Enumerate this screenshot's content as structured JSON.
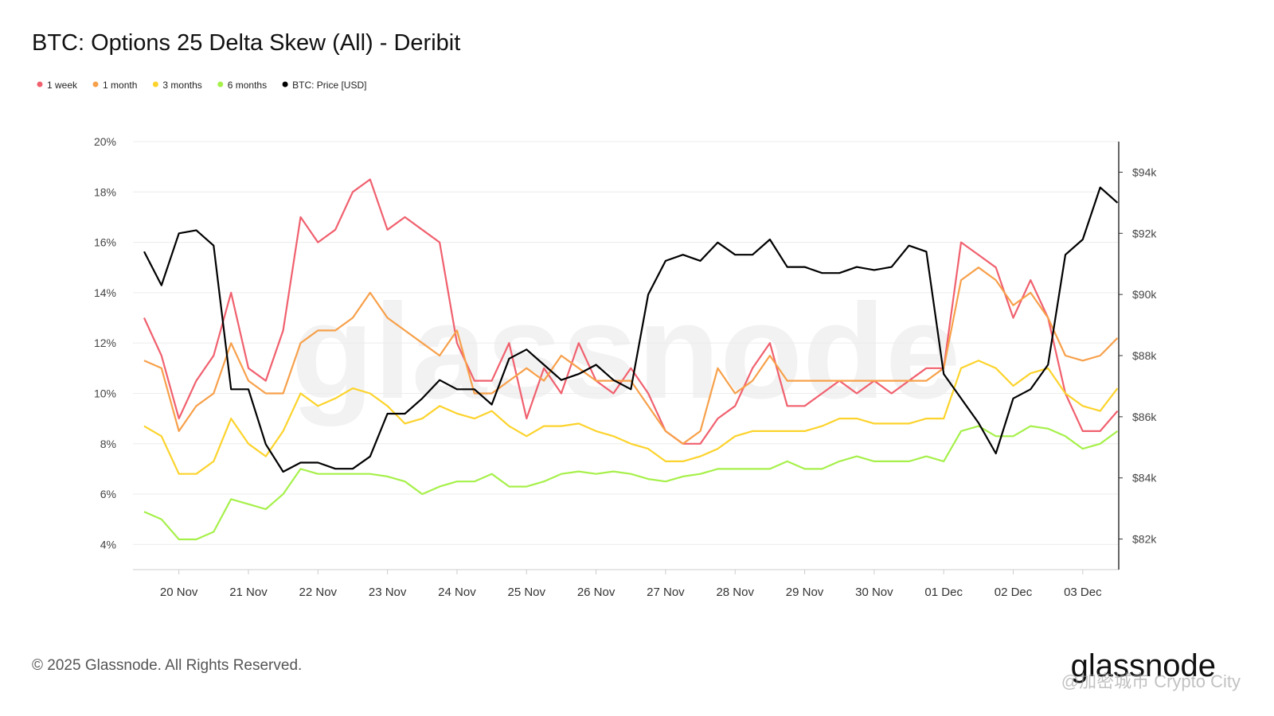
{
  "chart_data": {
    "type": "line",
    "title": "BTC: Options 25 Delta Skew (All) - Deribit",
    "categories": [
      null,
      null,
      "20 Nov",
      null,
      null,
      null,
      "21 Nov",
      null,
      null,
      null,
      "22 Nov",
      null,
      null,
      null,
      "23 Nov",
      null,
      null,
      null,
      "24 Nov",
      null,
      null,
      null,
      "25 Nov",
      null,
      null,
      null,
      "26 Nov",
      null,
      null,
      null,
      "27 Nov",
      null,
      null,
      null,
      "28 Nov",
      null,
      null,
      null,
      "29 Nov",
      null,
      null,
      null,
      "30 Nov",
      null,
      null,
      null,
      "01 Dec",
      null,
      null,
      null,
      "02 Dec",
      null,
      null,
      null,
      "03 Dec",
      null,
      null
    ],
    "ylim": [
      3,
      20
    ],
    "yticks": [
      {
        "value": 4,
        "label": "4%"
      },
      {
        "value": 6,
        "label": "6%"
      },
      {
        "value": 8,
        "label": "8%"
      },
      {
        "value": 10,
        "label": "10%"
      },
      {
        "value": 12,
        "label": "12%"
      },
      {
        "value": 14,
        "label": "14%"
      },
      {
        "value": 16,
        "label": "16%"
      },
      {
        "value": 18,
        "label": "18%"
      },
      {
        "value": 20,
        "label": "20%"
      }
    ],
    "y2lim": [
      81000,
      95000
    ],
    "y2ticks": [
      {
        "value": 82000,
        "label": "$82k"
      },
      {
        "value": 84000,
        "label": "$84k"
      },
      {
        "value": 86000,
        "label": "$86k"
      },
      {
        "value": 88000,
        "label": "$88k"
      },
      {
        "value": 90000,
        "label": "$90k"
      },
      {
        "value": 92000,
        "label": "$92k"
      },
      {
        "value": 94000,
        "label": "$94k"
      }
    ],
    "grid": true,
    "series": [
      {
        "name": "1 week",
        "color": "#f0606e",
        "values": [
          13,
          11.5,
          9,
          10.5,
          11.5,
          14,
          11,
          10.5,
          12.5,
          17,
          16,
          16.5,
          18,
          18.5,
          16.5,
          17,
          16.5,
          16,
          12,
          10.5,
          10.5,
          12,
          9,
          11,
          10,
          12,
          10.5,
          10,
          11,
          10,
          8.5,
          8,
          8,
          9,
          9.5,
          11,
          12,
          9.5,
          9.5,
          10,
          10.5,
          10,
          10.5,
          10,
          10.5,
          11,
          11,
          16,
          15.5,
          15,
          13,
          14.5,
          13,
          10,
          8.5,
          8.5,
          9.3
        ]
      },
      {
        "name": "1 month",
        "color": "#f7a04a",
        "values": [
          11.3,
          11,
          8.5,
          9.5,
          10,
          12,
          10.5,
          10,
          10,
          12,
          12.5,
          12.5,
          13,
          14,
          13,
          12.5,
          12,
          11.5,
          12.5,
          10,
          10,
          10.5,
          11,
          10.5,
          11.5,
          11,
          10.5,
          10.5,
          10.5,
          9.5,
          8.5,
          8,
          8.5,
          11,
          10,
          10.5,
          11.5,
          10.5,
          10.5,
          10.5,
          10.5,
          10.5,
          10.5,
          10.5,
          10.5,
          10.5,
          11,
          14.5,
          15,
          14.5,
          13.5,
          14,
          13,
          11.5,
          11.3,
          11.5,
          12.2
        ]
      },
      {
        "name": "3 months",
        "color": "#fcd32c",
        "values": [
          8.7,
          8.3,
          6.8,
          6.8,
          7.3,
          9,
          8,
          7.5,
          8.5,
          10,
          9.5,
          9.8,
          10.2,
          10,
          9.5,
          8.8,
          9,
          9.5,
          9.2,
          9,
          9.3,
          8.7,
          8.3,
          8.7,
          8.7,
          8.8,
          8.5,
          8.3,
          8,
          7.8,
          7.3,
          7.3,
          7.5,
          7.8,
          8.3,
          8.5,
          8.5,
          8.5,
          8.5,
          8.7,
          9,
          9,
          8.8,
          8.8,
          8.8,
          9,
          9,
          11,
          11.3,
          11,
          10.3,
          10.8,
          11,
          10,
          9.5,
          9.3,
          10.2
        ]
      },
      {
        "name": "6 months",
        "color": "#a6f04a",
        "values": [
          5.3,
          5,
          4.2,
          4.2,
          4.5,
          5.8,
          5.6,
          5.4,
          6,
          7,
          6.8,
          6.8,
          6.8,
          6.8,
          6.7,
          6.5,
          6,
          6.3,
          6.5,
          6.5,
          6.8,
          6.3,
          6.3,
          6.5,
          6.8,
          6.9,
          6.8,
          6.9,
          6.8,
          6.6,
          6.5,
          6.7,
          6.8,
          7,
          7,
          7,
          7,
          7.3,
          7,
          7,
          7.3,
          7.5,
          7.3,
          7.3,
          7.3,
          7.5,
          7.3,
          8.5,
          8.7,
          8.3,
          8.3,
          8.7,
          8.6,
          8.3,
          7.8,
          8,
          8.5
        ]
      },
      {
        "name": "BTC: Price [USD]",
        "color": "#000000",
        "axis": "y2",
        "values": [
          91400,
          90300,
          92000,
          92100,
          91600,
          86900,
          86900,
          85100,
          84200,
          84500,
          84500,
          84300,
          84300,
          84700,
          86100,
          86100,
          86600,
          87200,
          86900,
          86900,
          86400,
          87900,
          88200,
          87700,
          87200,
          87400,
          87700,
          87200,
          86900,
          90000,
          91100,
          91300,
          91100,
          91700,
          91300,
          91300,
          91800,
          90900,
          90900,
          90700,
          90700,
          90900,
          90800,
          90900,
          91600,
          91400,
          87400,
          86600,
          85800,
          84800,
          86600,
          86900,
          87700,
          91300,
          91800,
          93500,
          93000
        ]
      }
    ]
  },
  "brand": "glassnode",
  "footer": "© 2025 Glassnode. All Rights Reserved.",
  "source_watermark": "@加密城市 Crypto City"
}
